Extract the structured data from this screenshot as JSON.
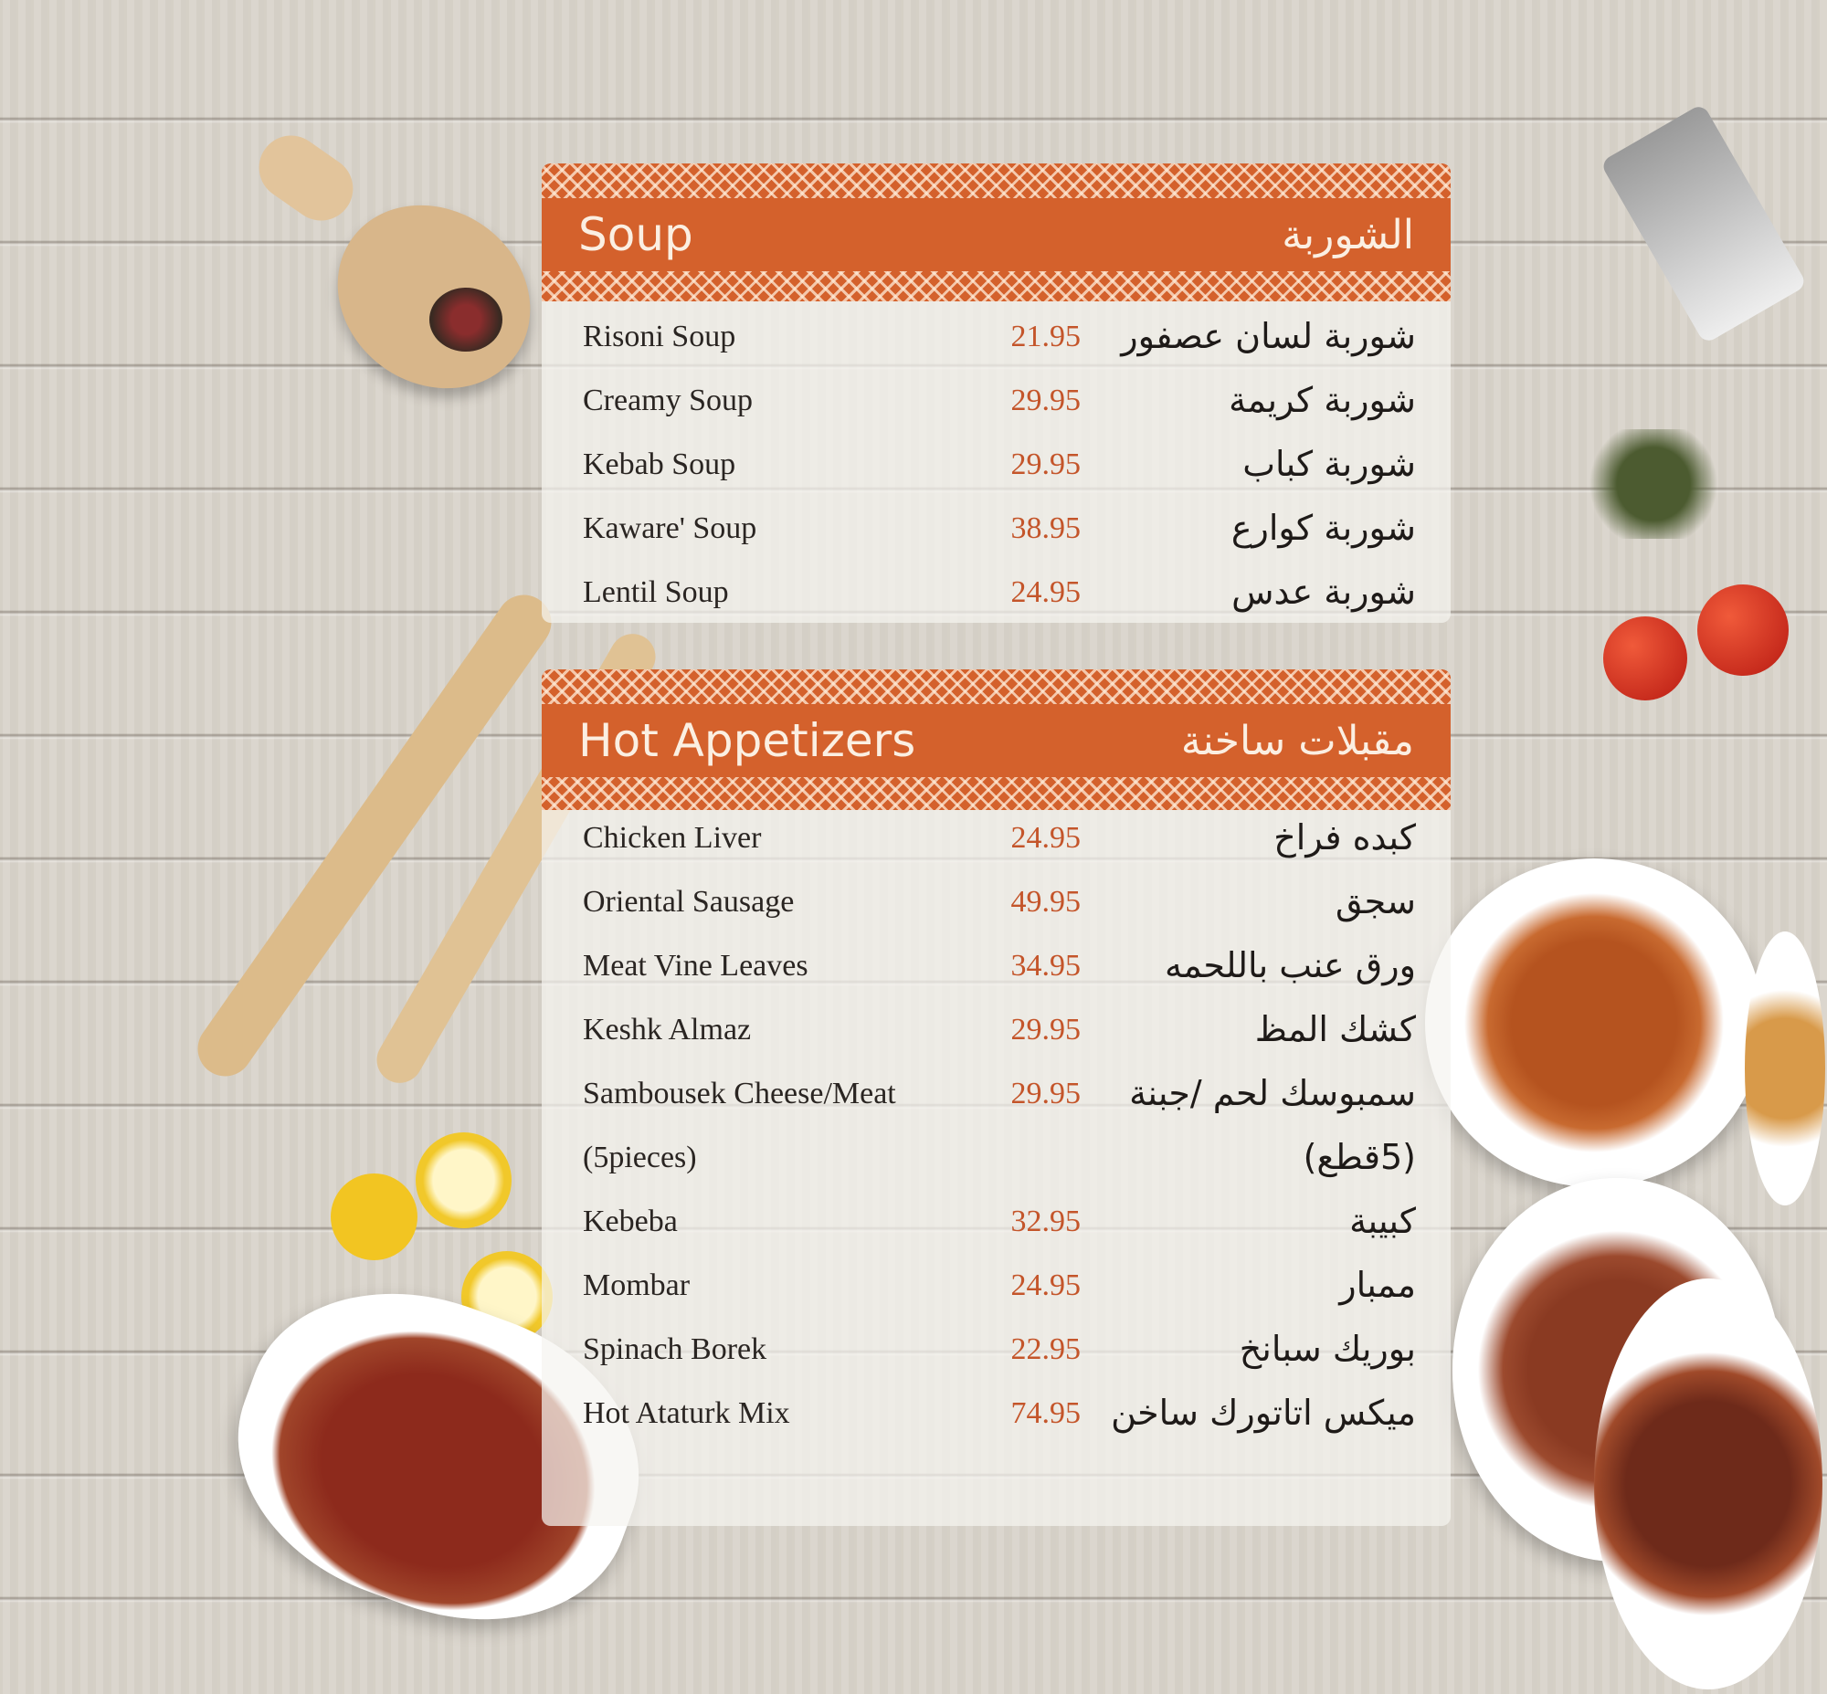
{
  "sections": [
    {
      "title_en": "Soup",
      "title_ar": "الشوربة",
      "items": [
        {
          "en": "Risoni Soup",
          "price": "21.95",
          "ar": "شوربة لسان عصفور"
        },
        {
          "en": "Creamy Soup",
          "price": "29.95",
          "ar": "شوربة كريمة"
        },
        {
          "en": "Kebab Soup",
          "price": "29.95",
          "ar": "شوربة كباب"
        },
        {
          "en": "Kaware' Soup",
          "price": "38.95",
          "ar": "شوربة كوارع"
        },
        {
          "en": "Lentil Soup",
          "price": "24.95",
          "ar": "شوربة عدس"
        }
      ]
    },
    {
      "title_en": "Hot Appetizers",
      "title_ar": "مقبلات ساخنة",
      "items": [
        {
          "en": "Chicken Liver",
          "price": "24.95",
          "ar": "كبده فراخ"
        },
        {
          "en": "Oriental Sausage",
          "price": "49.95",
          "ar": "سجق"
        },
        {
          "en": "Meat Vine Leaves",
          "price": "34.95",
          "ar": "ورق عنب باللحمه"
        },
        {
          "en": "Keshk Almaz",
          "price": "29.95",
          "ar": "كشك المظ"
        },
        {
          "en": "Sambousek Cheese/Meat",
          "price": "29.95",
          "ar": "سمبوسك لحم /جبنة"
        },
        {
          "en": "(5pieces)",
          "price": "",
          "ar": "(5قطع)"
        },
        {
          "en": "Kebeba",
          "price": "32.95",
          "ar": "كبيبة"
        },
        {
          "en": "Mombar",
          "price": "24.95",
          "ar": "ممبار"
        },
        {
          "en": "Spinach Borek",
          "price": "22.95",
          "ar": "بوريك سبانخ"
        },
        {
          "en": "Hot Ataturk Mix",
          "price": "74.95",
          "ar": "ميكس اتاتورك ساخن"
        }
      ]
    }
  ],
  "colors": {
    "header": "#d4612c",
    "price": "#c4552a",
    "background": "#d9d4cb"
  }
}
